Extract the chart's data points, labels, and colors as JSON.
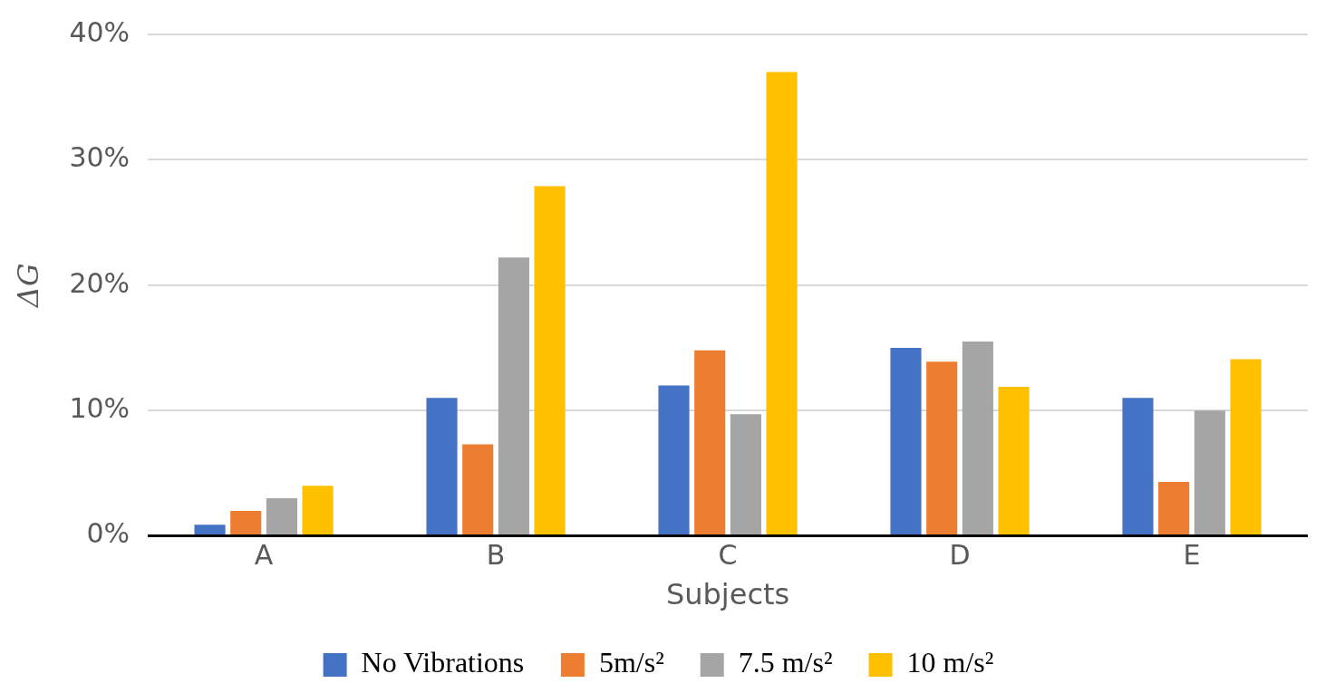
{
  "chart_data": {
    "type": "bar",
    "xlabel": "Subjects",
    "ylabel": "ΔG",
    "categories": [
      "A",
      "B",
      "C",
      "D",
      "E"
    ],
    "series": [
      {
        "name": "No Vibrations",
        "color": "#4472c4",
        "values": [
          0.9,
          11.0,
          12.0,
          15.0,
          11.0
        ]
      },
      {
        "name": "5m/s²",
        "color": "#ed7d31",
        "values": [
          2.0,
          7.3,
          14.8,
          13.9,
          4.3
        ]
      },
      {
        "name": "7.5 m/s²",
        "color": "#a5a5a5",
        "values": [
          3.0,
          22.2,
          9.7,
          15.5,
          10.0
        ]
      },
      {
        "name": "10 m/s²",
        "color": "#ffc000",
        "values": [
          4.0,
          27.9,
          37.0,
          11.9,
          14.1
        ]
      }
    ],
    "ylim": [
      0,
      40
    ],
    "yticks": [
      {
        "value": 0,
        "label": "0%"
      },
      {
        "value": 10,
        "label": "10%"
      },
      {
        "value": 20,
        "label": "20%"
      },
      {
        "value": 30,
        "label": "30%"
      },
      {
        "value": 40,
        "label": "40%"
      }
    ],
    "grid": "y",
    "legend": "bottom"
  }
}
